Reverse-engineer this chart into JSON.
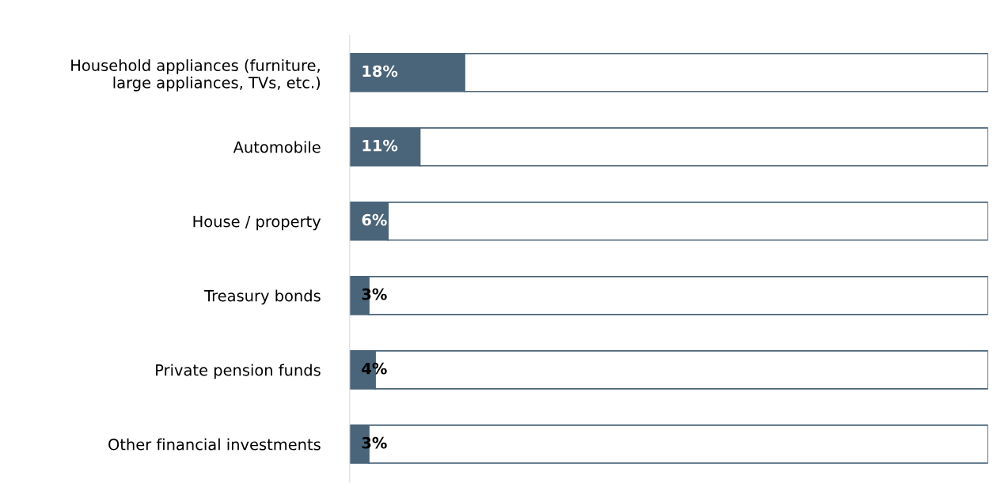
{
  "chart_data": {
    "type": "bar",
    "orientation": "horizontal",
    "stacked": true,
    "tick_labels": "y",
    "grid": false,
    "categories": [
      "Household appliances (furniture,\nlarge appliances, TVs, etc.)",
      "Automobile",
      "House / property",
      "Treasury bonds",
      "Private pension funds",
      "Other financial investments"
    ],
    "xlim": [
      0,
      100
    ],
    "series": [
      {
        "color": "#4a6479",
        "values": [
          18,
          11,
          6,
          3,
          4,
          3
        ],
        "value_labels": [
          "18%",
          "11%",
          "6%",
          "3%",
          "4%",
          "3%"
        ]
      },
      {
        "color": "#ffffff",
        "values": [
          82,
          89,
          94,
          97,
          96,
          97
        ],
        "value_labels": [
          null,
          null,
          null,
          null,
          null,
          null
        ]
      }
    ]
  }
}
